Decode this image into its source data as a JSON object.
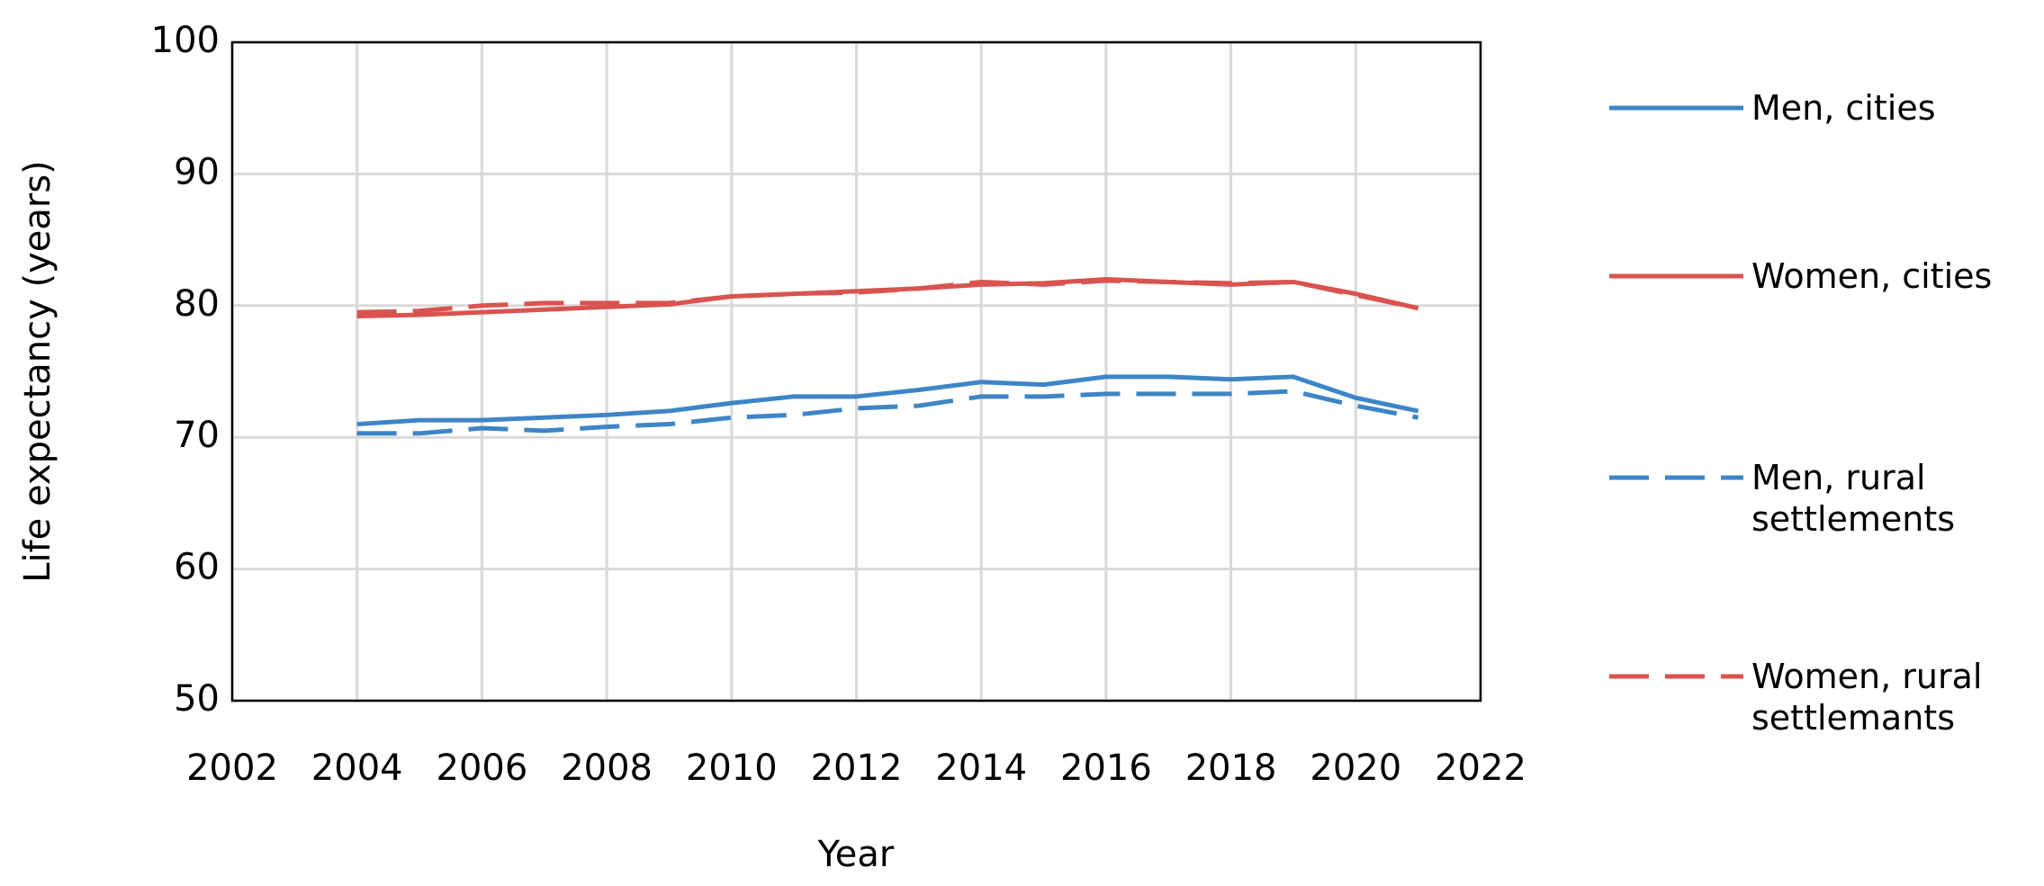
{
  "chart_data": {
    "type": "line",
    "x_label": "Year",
    "y_label": "Life expectancy (years)",
    "x": [
      2004,
      2005,
      2006,
      2007,
      2008,
      2009,
      2010,
      2011,
      2012,
      2013,
      2014,
      2015,
      2016,
      2017,
      2018,
      2019,
      2020,
      2021
    ],
    "series": [
      {
        "name": "Men, cities",
        "color": "#3d85c6",
        "dash": false,
        "values": [
          71.0,
          71.3,
          71.3,
          71.5,
          71.7,
          72.0,
          72.6,
          73.1,
          73.1,
          73.6,
          74.2,
          74.0,
          74.6,
          74.6,
          74.4,
          74.6,
          73.0,
          72.0
        ]
      },
      {
        "name": "Women, cities",
        "color": "#d9534f",
        "dash": false,
        "values": [
          79.2,
          79.3,
          79.5,
          79.7,
          79.9,
          80.1,
          80.7,
          80.9,
          81.1,
          81.3,
          81.6,
          81.7,
          82.0,
          81.8,
          81.6,
          81.8,
          80.9,
          79.8
        ]
      },
      {
        "name": "Men, rural settlements",
        "color": "#3d85c6",
        "dash": true,
        "values": [
          70.3,
          70.3,
          70.7,
          70.5,
          70.8,
          71.0,
          71.5,
          71.7,
          72.2,
          72.4,
          73.1,
          73.1,
          73.3,
          73.3,
          73.3,
          73.5,
          72.4,
          71.5
        ]
      },
      {
        "name": "Women, rural settlemants",
        "color": "#d9534f",
        "dash": true,
        "values": [
          79.5,
          79.6,
          80.0,
          80.2,
          80.2,
          80.2,
          80.7,
          80.9,
          81.0,
          81.3,
          81.8,
          81.6,
          81.9,
          81.8,
          81.7,
          81.8,
          80.8,
          79.8
        ]
      }
    ],
    "xlim": [
      2002,
      2022
    ],
    "xticks": [
      2002,
      2004,
      2006,
      2008,
      2010,
      2012,
      2014,
      2016,
      2018,
      2020,
      2022
    ],
    "ylim": [
      50,
      100
    ],
    "yticks": [
      50,
      60,
      70,
      80,
      90,
      100
    ],
    "grid": true,
    "legend": "right"
  }
}
